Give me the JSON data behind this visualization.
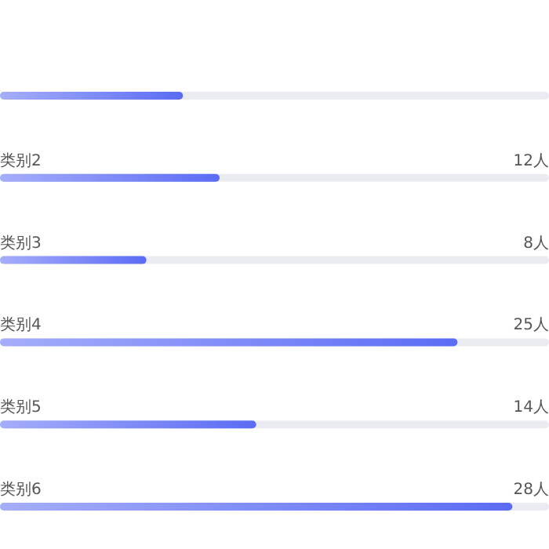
{
  "chart_data": {
    "type": "bar",
    "orientation": "horizontal",
    "categories": [
      null,
      "类别2",
      "类别3",
      "类别4",
      "类别5",
      "类别6"
    ],
    "values": [
      10,
      12,
      8,
      25,
      14,
      28
    ],
    "value_labels": [
      null,
      "12人",
      "8人",
      "25人",
      "14人",
      "28人"
    ],
    "color": "#5b6cf5",
    "xlim": [
      0,
      30
    ]
  }
}
